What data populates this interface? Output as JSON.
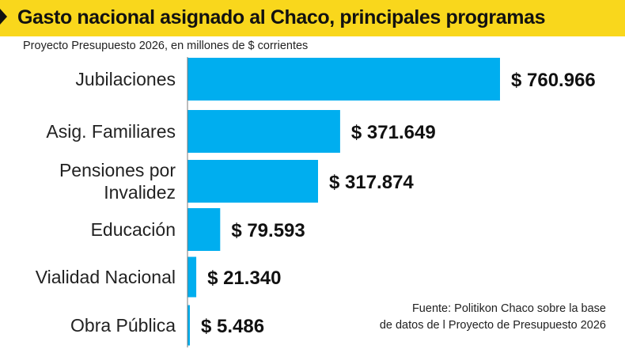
{
  "header": {
    "title": "Gasto nacional asignado al Chaco, principales programas",
    "subtitle": "Proyecto Presupuesto 2026, en millones de $ corrientes"
  },
  "source": {
    "line1": "Fuente: Politikon Chaco sobre la base",
    "line2": "de datos de l Proyecto de Presupuesto 2026"
  },
  "colors": {
    "bar": "#00aeef",
    "title_band": "#f9d71c",
    "axis": "#7a7a7a"
  },
  "chart_data": {
    "type": "bar",
    "orientation": "horizontal",
    "title": "Gasto nacional asignado al Chaco, principales programas",
    "subtitle": "Proyecto Presupuesto 2026, en millones de $ corrientes",
    "categories": [
      [
        "Jubilaciones"
      ],
      [
        "Asig. Familiares"
      ],
      [
        "Pensiones por",
        "Invalidez"
      ],
      [
        "Educación"
      ],
      [
        "Vialidad Nacional"
      ],
      [
        "Obra Pública"
      ]
    ],
    "values": [
      760966,
      371649,
      317874,
      79593,
      21340,
      5486
    ],
    "value_labels": [
      "$ 760.966",
      "$ 371.649",
      "$ 317.874",
      "$ 79.593",
      "$ 21.340",
      "$ 5.486"
    ],
    "xlim": [
      0,
      760966
    ],
    "xlabel": "",
    "ylabel": "",
    "grid": false,
    "legend": "none"
  }
}
